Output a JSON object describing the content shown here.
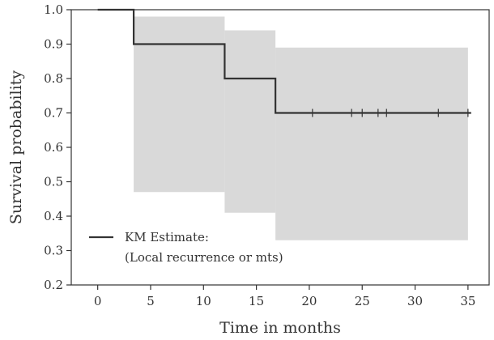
{
  "chart_data": {
    "type": "line",
    "xlabel": "Time in months",
    "ylabel": "Survival probability",
    "xlim": [
      -2.5,
      37
    ],
    "ylim": [
      0.2,
      1.0
    ],
    "xticks": [
      0,
      5,
      10,
      15,
      20,
      25,
      30,
      35
    ],
    "yticks": [
      0.2,
      0.3,
      0.4,
      0.5,
      0.6,
      0.7,
      0.8,
      0.9,
      1.0
    ],
    "grid": false,
    "legend": {
      "position": "bottom-left",
      "label_lines": [
        "KM Estimate:",
        "(Local recurrence or mts)"
      ]
    },
    "series": [
      {
        "name": "KM Estimate: (Local recurrence or mts)",
        "type": "step",
        "color": "#333333",
        "x": [
          0,
          3.4,
          12.0,
          16.8,
          35.3
        ],
        "y": [
          1.0,
          0.9,
          0.8,
          0.7,
          0.7
        ]
      }
    ],
    "confidence_band": {
      "color": "#d9d9d9",
      "segments": [
        {
          "x_start": 3.4,
          "x_end": 12.0,
          "lower": 0.47,
          "upper": 0.98
        },
        {
          "x_start": 12.0,
          "x_end": 16.8,
          "lower": 0.41,
          "upper": 0.94
        },
        {
          "x_start": 16.8,
          "x_end": 35.0,
          "lower": 0.33,
          "upper": 0.89
        }
      ]
    },
    "censor_times": [
      20.3,
      24.0,
      25.0,
      26.5,
      27.3,
      32.2,
      35.0
    ]
  }
}
